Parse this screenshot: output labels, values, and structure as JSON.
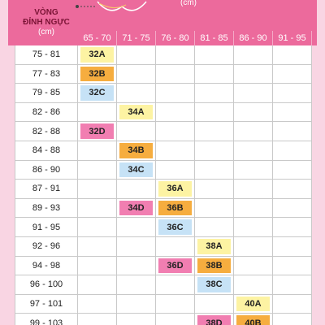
{
  "header": {
    "top_unit": "(cm)",
    "row_heading": [
      "VÒNG",
      "ĐỈNH NGỰC"
    ],
    "row_unit": "(cm)",
    "columns": [
      "65 - 70",
      "71 - 75",
      "76 - 80",
      "81 - 85",
      "86 - 90",
      "91 - 95"
    ]
  },
  "table": {
    "rows": [
      {
        "label": "75 - 81",
        "cells": [
          "32A",
          null,
          null,
          null,
          null,
          null
        ]
      },
      {
        "label": "77 - 83",
        "cells": [
          "32B",
          null,
          null,
          null,
          null,
          null
        ]
      },
      {
        "label": "79 - 85",
        "cells": [
          "32C",
          null,
          null,
          null,
          null,
          null
        ]
      },
      {
        "label": "82 - 86",
        "cells": [
          null,
          "34A",
          null,
          null,
          null,
          null
        ]
      },
      {
        "label": "82 - 88",
        "cells": [
          "32D",
          null,
          null,
          null,
          null,
          null
        ]
      },
      {
        "label": "84 - 88",
        "cells": [
          null,
          "34B",
          null,
          null,
          null,
          null
        ]
      },
      {
        "label": "86 - 90",
        "cells": [
          null,
          "34C",
          null,
          null,
          null,
          null
        ]
      },
      {
        "label": "87 - 91",
        "cells": [
          null,
          null,
          "36A",
          null,
          null,
          null
        ]
      },
      {
        "label": "89 - 93",
        "cells": [
          null,
          "34D",
          "36B",
          null,
          null,
          null
        ]
      },
      {
        "label": "91 - 95",
        "cells": [
          null,
          null,
          "36C",
          null,
          null,
          null
        ]
      },
      {
        "label": "92 - 96",
        "cells": [
          null,
          null,
          null,
          "38A",
          null,
          null
        ]
      },
      {
        "label": "94 - 98",
        "cells": [
          null,
          null,
          "36D",
          "38B",
          null,
          null
        ]
      },
      {
        "label": "96 - 100",
        "cells": [
          null,
          null,
          null,
          "38C",
          null,
          null
        ]
      },
      {
        "label": "97 - 101",
        "cells": [
          null,
          null,
          null,
          null,
          "40A",
          null
        ]
      },
      {
        "label": "99 - 103",
        "cells": [
          null,
          null,
          null,
          "38D",
          "40B",
          null
        ]
      }
    ]
  }
}
